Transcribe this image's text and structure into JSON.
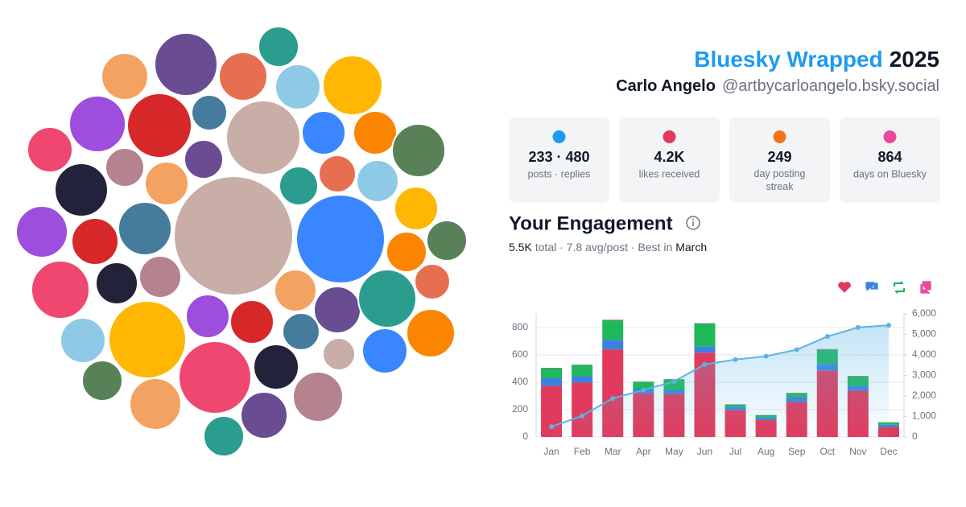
{
  "header": {
    "title": "Bluesky Wrapped",
    "year": "2025",
    "name": "Carlo Angelo",
    "handle": "@artbycarloangelo.bsky.social"
  },
  "stats": [
    {
      "value": "233 · 480",
      "label": "posts · replies"
    },
    {
      "value": "4.2K",
      "label": "likes received"
    },
    {
      "value": "249",
      "label": "day posting streak"
    },
    {
      "value": "864",
      "label": "days on Bluesky"
    }
  ],
  "engagement": {
    "title": "Your Engagement",
    "total": "5.5K",
    "middle": "total · 7.8 avg/post · Best in",
    "best": "March"
  },
  "chart_data": {
    "type": "bar",
    "stacked": true,
    "categories": [
      "Jan",
      "Feb",
      "Mar",
      "Apr",
      "May",
      "Jun",
      "Jul",
      "Aug",
      "Sep",
      "Oct",
      "Nov",
      "Dec"
    ],
    "series": [
      {
        "color": "#e23a5c",
        "values": [
          373,
          397,
          640,
          320,
          314,
          616,
          196,
          124,
          255,
          486,
          338,
          71
        ]
      },
      {
        "color": "#3b82e0",
        "values": [
          59,
          47,
          71,
          30,
          30,
          47,
          24,
          18,
          36,
          47,
          36,
          18
        ]
      },
      {
        "color": "#1fb85a",
        "values": [
          71,
          83,
          142,
          53,
          77,
          166,
          18,
          18,
          30,
          107,
          71,
          18
        ]
      },
      {
        "color": "#ec4899",
        "values": [
          3,
          2,
          4,
          2,
          2,
          3,
          1,
          1,
          2,
          3,
          2,
          1
        ]
      },
      {
        "type": "line",
        "axis": "y2",
        "color": "#5ab4e5",
        "values": [
          503,
          1030,
          1883,
          2286,
          2707,
          3536,
          3774,
          3934,
          4255,
          4895,
          5340,
          5447
        ]
      }
    ],
    "ylim": [
      0,
      900
    ],
    "yticks": [
      0,
      200,
      400,
      600,
      800
    ],
    "y2lim": [
      0,
      6000
    ],
    "y2ticks": [
      0,
      {
        "value": 1000,
        "label": "1,000"
      },
      {
        "value": 2000,
        "label": "2,000"
      },
      {
        "value": 3000,
        "label": "3,000"
      },
      {
        "value": 4000,
        "label": "4,000"
      },
      {
        "value": 5000,
        "label": "5,000"
      },
      {
        "value": 6000,
        "label": "6,000"
      }
    ],
    "grid": true
  }
}
